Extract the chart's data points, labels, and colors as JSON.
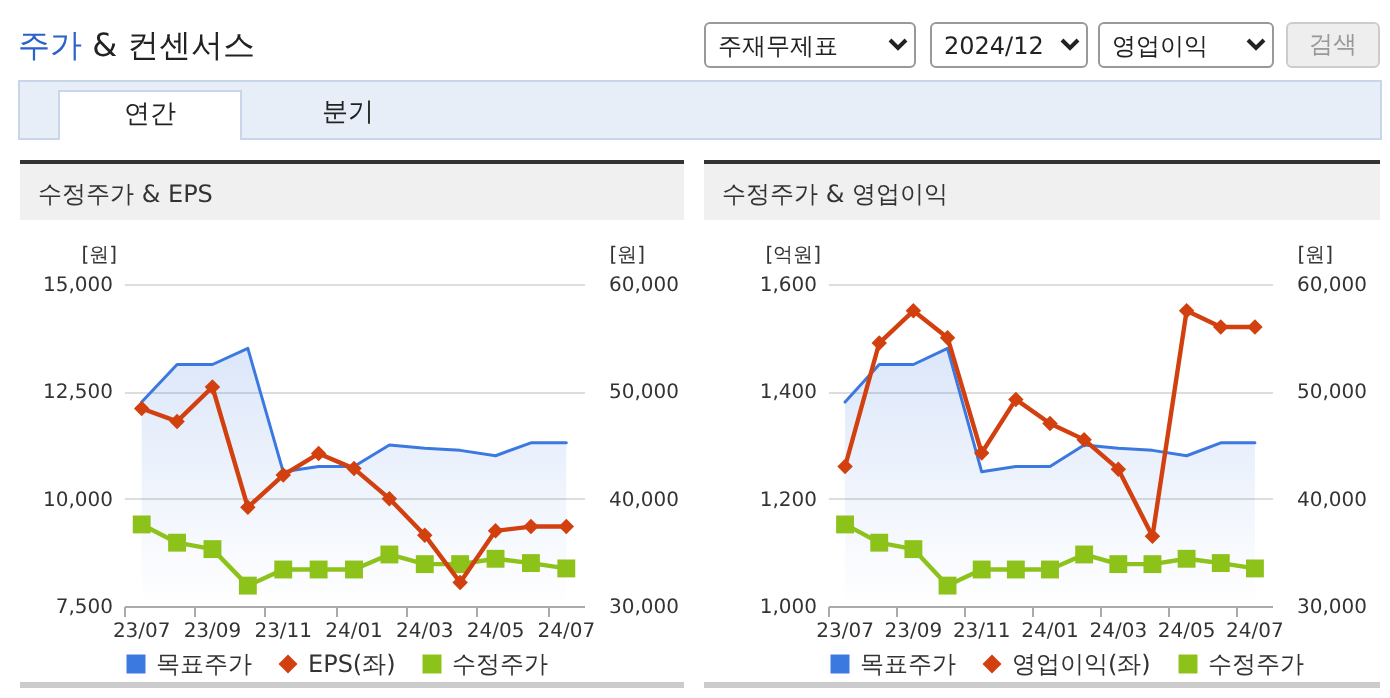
{
  "chart_data": [
    {
      "type": "other",
      "title": "주가 & 컨센서스",
      "annotations": [
        "주재무제표",
        "2024/12",
        "영업이익",
        "검색",
        "연간",
        "분기"
      ]
    },
    {
      "type": "line",
      "title": "수정주가 & EPS",
      "ylabel": "[원]",
      "y2label": "[원]",
      "categories": [
        "23/07",
        null,
        "23/09",
        null,
        "23/11",
        null,
        "24/01",
        null,
        "24/03",
        null,
        "24/05",
        null,
        "24/07"
      ],
      "series": [
        {
          "name": "목표주가",
          "type": "area",
          "axis": "y2",
          "color": "#3b78e0",
          "values": [
            49000,
            52500,
            52500,
            54000,
            42500,
            43000,
            43000,
            45000,
            44700,
            44500,
            44000,
            45200,
            45200
          ]
        },
        {
          "name": "EPS(좌)",
          "color": "#d2400f",
          "marker": "diamond",
          "values": [
            12100,
            11800,
            12600,
            9800,
            10550,
            11050,
            10700,
            10000,
            9150,
            8050,
            9250,
            9350,
            9350
          ]
        },
        {
          "name": "수정주가",
          "axis": "y2",
          "color": "#8cc21a",
          "marker": "square",
          "values": [
            37600,
            35900,
            35300,
            31900,
            33400,
            33400,
            33400,
            34800,
            33900,
            33900,
            34400,
            34000,
            33500
          ]
        }
      ],
      "ylim": [
        7500,
        15000
      ],
      "yticks": [
        {
          "value": 7500,
          "label": "7,500"
        },
        {
          "value": 10000,
          "label": "10,000"
        },
        {
          "value": 12500,
          "label": "12,500"
        },
        {
          "value": 15000,
          "label": "15,000"
        }
      ],
      "y2lim": [
        30000,
        60000
      ],
      "y2ticks": [
        {
          "value": 30000,
          "label": "30,000"
        },
        {
          "value": 40000,
          "label": "40,000"
        },
        {
          "value": 50000,
          "label": "50,000"
        },
        {
          "value": 60000,
          "label": "60,000"
        }
      ],
      "grid": "y",
      "legend": "bottom"
    },
    {
      "type": "line",
      "title": "수정주가 & 영업이익",
      "ylabel": "[억원]",
      "y2label": "[원]",
      "categories": [
        "23/07",
        null,
        "23/09",
        null,
        "23/11",
        null,
        "24/01",
        null,
        "24/03",
        null,
        "24/05",
        null,
        "24/07"
      ],
      "series": [
        {
          "name": "목표주가",
          "type": "area",
          "axis": "y2",
          "color": "#3b78e0",
          "values": [
            49000,
            52500,
            52500,
            54000,
            42500,
            43000,
            43000,
            45000,
            44700,
            44500,
            44000,
            45200,
            45200
          ]
        },
        {
          "name": "영업이익(좌)",
          "color": "#d2400f",
          "marker": "diamond",
          "values": [
            1260,
            1490,
            1550,
            1500,
            1285,
            1385,
            1340,
            1310,
            1255,
            1130,
            1550,
            1520,
            1520
          ]
        },
        {
          "name": "수정주가",
          "axis": "y2",
          "color": "#8cc21a",
          "marker": "square",
          "values": [
            37600,
            35900,
            35300,
            31900,
            33400,
            33400,
            33400,
            34800,
            33900,
            33900,
            34400,
            34000,
            33500
          ]
        }
      ],
      "ylim": [
        1000,
        1600
      ],
      "yticks": [
        {
          "value": 1000,
          "label": "1,000"
        },
        {
          "value": 1200,
          "label": "1,200"
        },
        {
          "value": 1400,
          "label": "1,400"
        },
        {
          "value": 1600,
          "label": "1,600"
        }
      ],
      "y2lim": [
        30000,
        60000
      ],
      "y2ticks": [
        {
          "value": 30000,
          "label": "30,000"
        },
        {
          "value": 40000,
          "label": "40,000"
        },
        {
          "value": 50000,
          "label": "50,000"
        },
        {
          "value": 60000,
          "label": "60,000"
        }
      ],
      "grid": "y",
      "legend": "bottom"
    }
  ]
}
